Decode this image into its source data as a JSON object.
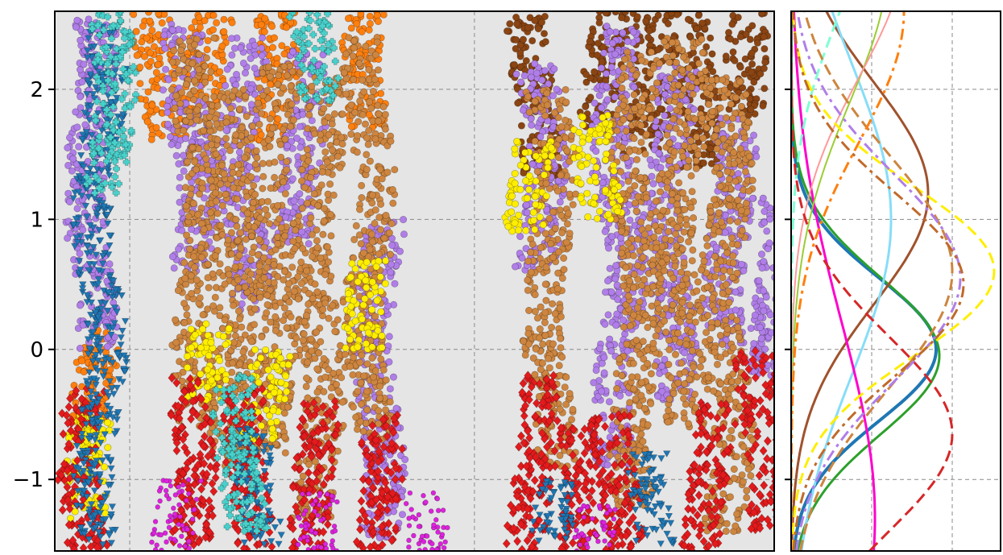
{
  "chart_data": [
    {
      "type": "scatter",
      "title": "",
      "xlabel": "",
      "ylabel": "",
      "ylim": [
        -1.55,
        2.6
      ],
      "xlim": [
        0,
        24
      ],
      "grid": true,
      "yticks": [
        2,
        1,
        0,
        -1
      ],
      "ytick_labels": [
        "2",
        "1",
        "0",
        "−1"
      ],
      "xticks": [
        2.5,
        14
      ],
      "series": [
        {
          "color": "#ff7f0e",
          "marker": "circle",
          "columns": [
            {
              "x": 1.2,
              "y_min": -0.6,
              "y_max": 0.15
            },
            {
              "x": 3.5,
              "y_min": 1.6,
              "y_max": 2.6
            },
            {
              "x": 5.2,
              "y_min": 1.8,
              "y_max": 2.6
            },
            {
              "x": 7.2,
              "y_min": 1.6,
              "y_max": 2.6
            },
            {
              "x": 10.5,
              "y_min": 1.7,
              "y_max": 2.6
            }
          ]
        },
        {
          "color": "#8b4513",
          "marker": "circle",
          "columns": [
            {
              "x": 16.0,
              "y_min": 1.3,
              "y_max": 2.6
            },
            {
              "x": 18.4,
              "y_min": 1.7,
              "y_max": 2.6
            },
            {
              "x": 19.8,
              "y_min": 1.5,
              "y_max": 2.6
            },
            {
              "x": 21.3,
              "y_min": 1.4,
              "y_max": 2.6
            },
            {
              "x": 23.3,
              "y_min": 1.8,
              "y_max": 2.6
            }
          ]
        },
        {
          "color": "#b07ee8",
          "marker": "circle",
          "columns": [
            {
              "x": 1.2,
              "y_min": 0.0,
              "y_max": 2.55
            },
            {
              "x": 4.5,
              "y_min": 0.6,
              "y_max": 2.5
            },
            {
              "x": 6.3,
              "y_min": 0.3,
              "y_max": 2.4
            },
            {
              "x": 8.2,
              "y_min": 0.8,
              "y_max": 2.3
            },
            {
              "x": 10.8,
              "y_min": -1.45,
              "y_max": 1.0
            },
            {
              "x": 16.2,
              "y_min": 0.6,
              "y_max": 2.2
            },
            {
              "x": 18.8,
              "y_min": -0.9,
              "y_max": 2.5
            },
            {
              "x": 20.5,
              "y_min": -0.4,
              "y_max": 2.2
            },
            {
              "x": 22.5,
              "y_min": 0.0,
              "y_max": 1.8
            },
            {
              "x": 24.0,
              "y_min": -0.2,
              "y_max": 1.2
            }
          ]
        },
        {
          "color": "#cd853f",
          "marker": "pentagon",
          "columns": [
            {
              "x": 4.8,
              "y_min": -0.6,
              "y_max": 2.4
            },
            {
              "x": 6.0,
              "y_min": -0.9,
              "y_max": 2.0
            },
            {
              "x": 7.3,
              "y_min": -0.8,
              "y_max": 2.2
            },
            {
              "x": 8.8,
              "y_min": -1.3,
              "y_max": 2.1
            },
            {
              "x": 10.5,
              "y_min": -0.7,
              "y_max": 2.4
            },
            {
              "x": 16.5,
              "y_min": -0.9,
              "y_max": 2.0
            },
            {
              "x": 19.4,
              "y_min": -1.2,
              "y_max": 2.3
            },
            {
              "x": 20.9,
              "y_min": -0.6,
              "y_max": 2.4
            },
            {
              "x": 22.4,
              "y_min": -1.4,
              "y_max": 2.1
            }
          ]
        },
        {
          "color": "#ffee00",
          "marker": "circle",
          "columns": [
            {
              "x": 1.3,
              "y_min": -1.3,
              "y_max": -0.5
            },
            {
              "x": 5.3,
              "y_min": -0.4,
              "y_max": 0.2
            },
            {
              "x": 7.1,
              "y_min": -0.7,
              "y_max": 0.0
            },
            {
              "x": 10.5,
              "y_min": 0.0,
              "y_max": 0.7
            },
            {
              "x": 15.7,
              "y_min": 0.9,
              "y_max": 1.6
            },
            {
              "x": 18.1,
              "y_min": 1.0,
              "y_max": 1.8
            }
          ]
        },
        {
          "color": "#e31a1c",
          "marker": "diamond",
          "columns": [
            {
              "x": 1.0,
              "y_min": -1.55,
              "y_max": -0.3
            },
            {
              "x": 4.5,
              "y_min": -1.55,
              "y_max": -0.2
            },
            {
              "x": 6.5,
              "y_min": -1.55,
              "y_max": -0.3
            },
            {
              "x": 8.7,
              "y_min": -1.55,
              "y_max": -0.4
            },
            {
              "x": 10.7,
              "y_min": -1.55,
              "y_max": -0.5
            },
            {
              "x": 15.9,
              "y_min": -1.55,
              "y_max": -0.2
            },
            {
              "x": 17.4,
              "y_min": -1.55,
              "y_max": -0.6
            },
            {
              "x": 18.8,
              "y_min": -1.55,
              "y_max": -0.5
            },
            {
              "x": 21.8,
              "y_min": -1.55,
              "y_max": -0.4
            },
            {
              "x": 23.6,
              "y_min": -1.4,
              "y_max": 0.0
            }
          ]
        },
        {
          "color": "#1f77b4",
          "marker": "triangle",
          "columns": [
            {
              "x": 1.5,
              "y_min": -1.5,
              "y_max": 2.5
            },
            {
              "x": 6.8,
              "y_min": -1.5,
              "y_max": -0.6
            },
            {
              "x": 16.6,
              "y_min": -1.5,
              "y_max": -1.0
            },
            {
              "x": 20.0,
              "y_min": -1.5,
              "y_max": -0.8
            }
          ]
        },
        {
          "color": "#48d1cc",
          "marker": "plus",
          "columns": [
            {
              "x": 1.8,
              "y_min": 1.2,
              "y_max": 2.6
            },
            {
              "x": 6.2,
              "y_min": -1.4,
              "y_max": -0.2
            },
            {
              "x": 8.6,
              "y_min": 1.9,
              "y_max": 2.6
            }
          ]
        },
        {
          "color": "#dd22dd",
          "marker": "star",
          "columns": [
            {
              "x": 4.0,
              "y_min": -1.55,
              "y_max": -1.0
            },
            {
              "x": 9.0,
              "y_min": -1.55,
              "y_max": -1.1
            },
            {
              "x": 12.2,
              "y_min": -1.55,
              "y_max": -1.1
            },
            {
              "x": 17.8,
              "y_min": -1.55,
              "y_max": -1.2
            }
          ]
        }
      ]
    },
    {
      "type": "line",
      "title": "",
      "xlabel": "",
      "ylabel": "",
      "ylim": [
        -1.55,
        2.6
      ],
      "xlim": [
        0,
        1.3
      ],
      "grid": true,
      "series": [
        {
          "color": "#1f77b4",
          "style": "solid",
          "width": 4,
          "mean": 0.0,
          "std": 0.55,
          "peak": 0.9
        },
        {
          "color": "#2ca02c",
          "style": "solid",
          "width": 3,
          "mean": -0.05,
          "std": 0.6,
          "peak": 0.92
        },
        {
          "color": "#a0522d",
          "style": "solid",
          "width": 3,
          "mean": 1.2,
          "std": 0.85,
          "peak": 0.85
        },
        {
          "color": "#87ddf8",
          "style": "solid",
          "width": 3,
          "mean": 1.0,
          "std": 1.2,
          "peak": 0.62
        },
        {
          "color": "#ff00cc",
          "style": "solid",
          "width": 3,
          "mean": -1.3,
          "std": 1.5,
          "peak": 0.52
        },
        {
          "color": "#9acd32",
          "style": "solid",
          "width": 2,
          "mean": 3.0,
          "std": 1.1,
          "peak": 0.6
        },
        {
          "color": "#ff9999",
          "style": "solid",
          "width": 2,
          "mean": 3.1,
          "std": 1.0,
          "peak": 0.7
        },
        {
          "color": "#7fffd4",
          "style": "dashed",
          "width": 3,
          "mean": 3.4,
          "std": 0.9,
          "peak": 0.45
        },
        {
          "color": "#d62728",
          "style": "dashed",
          "width": 3,
          "mean": -0.65,
          "std": 0.75,
          "peak": 1.0
        },
        {
          "color": "#ffee00",
          "style": "dashed",
          "width": 3,
          "mean": 0.6,
          "std": 0.65,
          "peak": 1.26
        },
        {
          "color": "#cd853f",
          "style": "dashed",
          "width": 3,
          "mean": 0.6,
          "std": 0.9,
          "peak": 1.0
        },
        {
          "color": "#b07ee8",
          "style": "dashdot",
          "width": 3,
          "mean": 0.55,
          "std": 0.8,
          "peak": 1.05
        },
        {
          "color": "#c06a2a",
          "style": "dashdot",
          "width": 3,
          "mean": 0.5,
          "std": 0.7,
          "peak": 1.07
        },
        {
          "color": "#ff7f0e",
          "style": "dashdot",
          "width": 3,
          "mean": 2.6,
          "std": 1.0,
          "peak": 0.7
        }
      ]
    }
  ]
}
